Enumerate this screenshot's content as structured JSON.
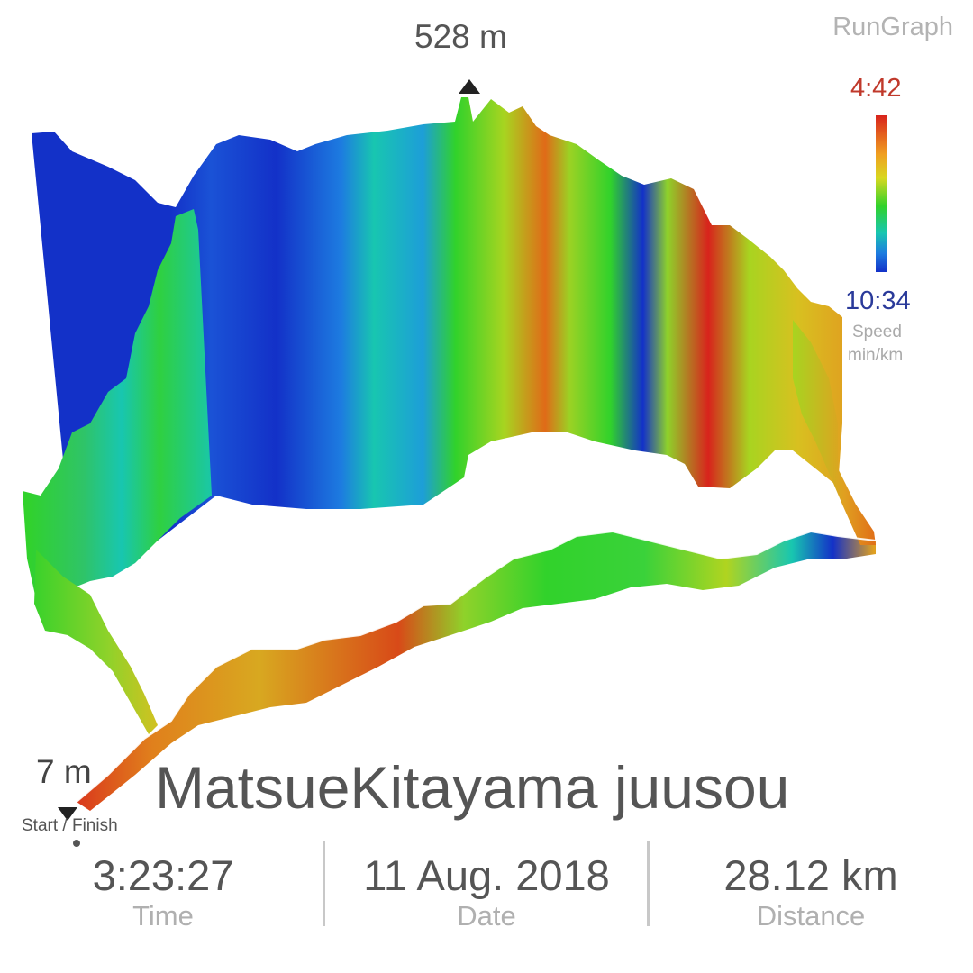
{
  "brand": "RunGraph",
  "elevation": {
    "max_label": "528 m",
    "min_label": "7 m"
  },
  "legend": {
    "fast_label": "4:42",
    "slow_label": "10:34",
    "caption_line1": "Speed",
    "caption_line2": "min/km",
    "colors": [
      "#d8231c",
      "#f0a020",
      "#d8d820",
      "#31d22b",
      "#18c6b0",
      "#1d7ce0",
      "#1331c8"
    ]
  },
  "start_finish_label": "Start / Finish",
  "title": "MatsueKitayama juusou",
  "stats": {
    "time": {
      "value": "3:23:27",
      "label": "Time"
    },
    "date": {
      "value": "11 Aug. 2018",
      "label": "Date"
    },
    "distance": {
      "value": "28.12 km",
      "label": "Distance"
    }
  }
}
